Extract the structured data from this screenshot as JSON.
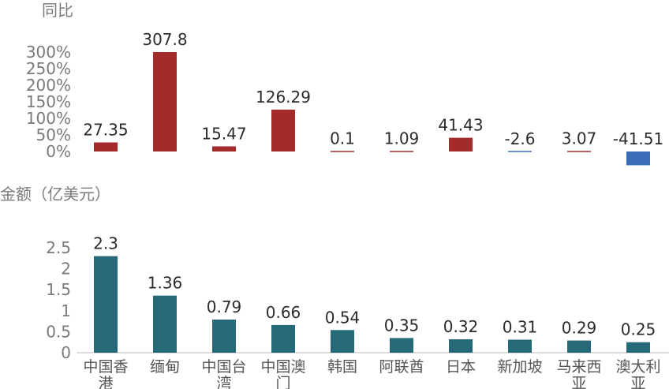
{
  "chart_data": [
    {
      "type": "bar",
      "ylabel": "同比",
      "ylim": [
        0,
        300
      ],
      "yticks": [
        "0%",
        "50%",
        "100%",
        "150%",
        "200%",
        "250%",
        "300%"
      ],
      "categories": [
        "中国香港",
        "缅甸",
        "中国台湾",
        "中国澳门",
        "韩国",
        "阿联酋",
        "日本",
        "新加坡",
        "马来西亚",
        "澳大利亚"
      ],
      "values": [
        27.35,
        307.8,
        15.47,
        126.29,
        0.1,
        1.09,
        41.43,
        -2.6,
        3.07,
        -41.51
      ],
      "data_labels": [
        "27.35",
        "307.8",
        "15.47",
        "126.29",
        "0.1",
        "1.09",
        "41.43",
        "-2.6",
        "3.07",
        "-41.51"
      ],
      "colors": {
        "positive": "#a52a2a",
        "negative": "#3a6db7"
      }
    },
    {
      "type": "bar",
      "ylabel": "金额（亿美元）",
      "ylim": [
        0,
        2.5
      ],
      "yticks": [
        "0",
        "0.5",
        "1",
        "1.5",
        "2",
        "2.5"
      ],
      "categories": [
        "中国香港",
        "缅甸",
        "中国台湾",
        "中国澳门",
        "韩国",
        "阿联酋",
        "日本",
        "新加坡",
        "马来西亚",
        "澳大利亚"
      ],
      "values": [
        2.3,
        1.36,
        0.79,
        0.66,
        0.54,
        0.35,
        0.32,
        0.31,
        0.29,
        0.25
      ],
      "data_labels": [
        "2.3",
        "1.36",
        "0.79",
        "0.66",
        "0.54",
        "0.35",
        "0.32",
        "0.31",
        "0.29",
        "0.25"
      ],
      "colors": {
        "bar": "#266979"
      }
    }
  ]
}
